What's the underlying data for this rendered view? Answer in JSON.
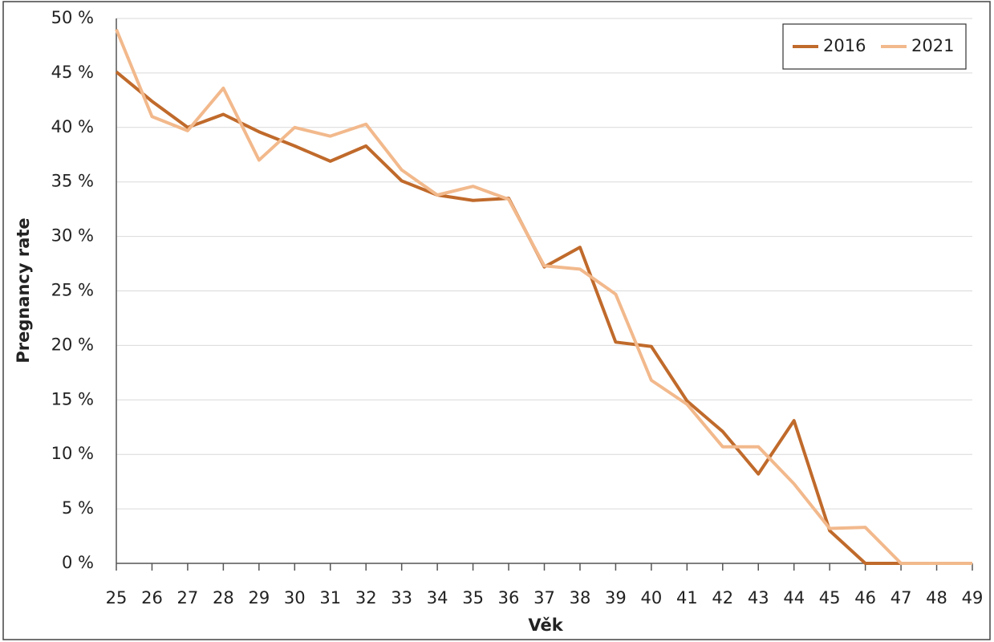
{
  "chart_data": {
    "type": "line",
    "x_label": "Věk",
    "y_label": "Pregnancy rate",
    "x": [
      25,
      26,
      27,
      28,
      29,
      30,
      31,
      32,
      33,
      34,
      35,
      36,
      37,
      38,
      39,
      40,
      41,
      42,
      43,
      44,
      45,
      46,
      47,
      48,
      49
    ],
    "series": [
      {
        "name": "2016",
        "color": "#c06a2b",
        "values": [
          45.1,
          42.4,
          40.0,
          41.2,
          39.6,
          38.3,
          36.9,
          38.3,
          35.1,
          33.8,
          33.3,
          33.5,
          27.2,
          29.0,
          20.3,
          19.9,
          14.9,
          12.1,
          8.2,
          13.1,
          3.0,
          0,
          0,
          0,
          0
        ]
      },
      {
        "name": "2021",
        "color": "#f2b98c",
        "values": [
          49.0,
          41.0,
          39.7,
          43.6,
          37.0,
          40.0,
          39.2,
          40.3,
          36.1,
          33.8,
          34.6,
          33.4,
          27.3,
          27.0,
          24.7,
          16.8,
          14.6,
          10.7,
          10.7,
          7.3,
          3.2,
          3.3,
          0,
          0,
          0
        ]
      }
    ],
    "xlim": [
      25,
      49
    ],
    "xticks": [
      25,
      26,
      27,
      28,
      29,
      30,
      31,
      32,
      33,
      34,
      35,
      36,
      37,
      38,
      39,
      40,
      41,
      42,
      43,
      44,
      45,
      46,
      47,
      48,
      49
    ],
    "ylim": [
      0,
      50
    ],
    "yticks": [
      {
        "value": 0,
        "label": "0 %"
      },
      {
        "value": 5,
        "label": "5 %"
      },
      {
        "value": 10,
        "label": "10 %"
      },
      {
        "value": 15,
        "label": "15 %"
      },
      {
        "value": 20,
        "label": "20 %"
      },
      {
        "value": 25,
        "label": "25 %"
      },
      {
        "value": 30,
        "label": "30 %"
      },
      {
        "value": 35,
        "label": "35 %"
      },
      {
        "value": 40,
        "label": "40 %"
      },
      {
        "value": 45,
        "label": "45 %"
      },
      {
        "value": 50,
        "label": "50 %"
      }
    ],
    "grid": true,
    "legend": "upper right"
  }
}
